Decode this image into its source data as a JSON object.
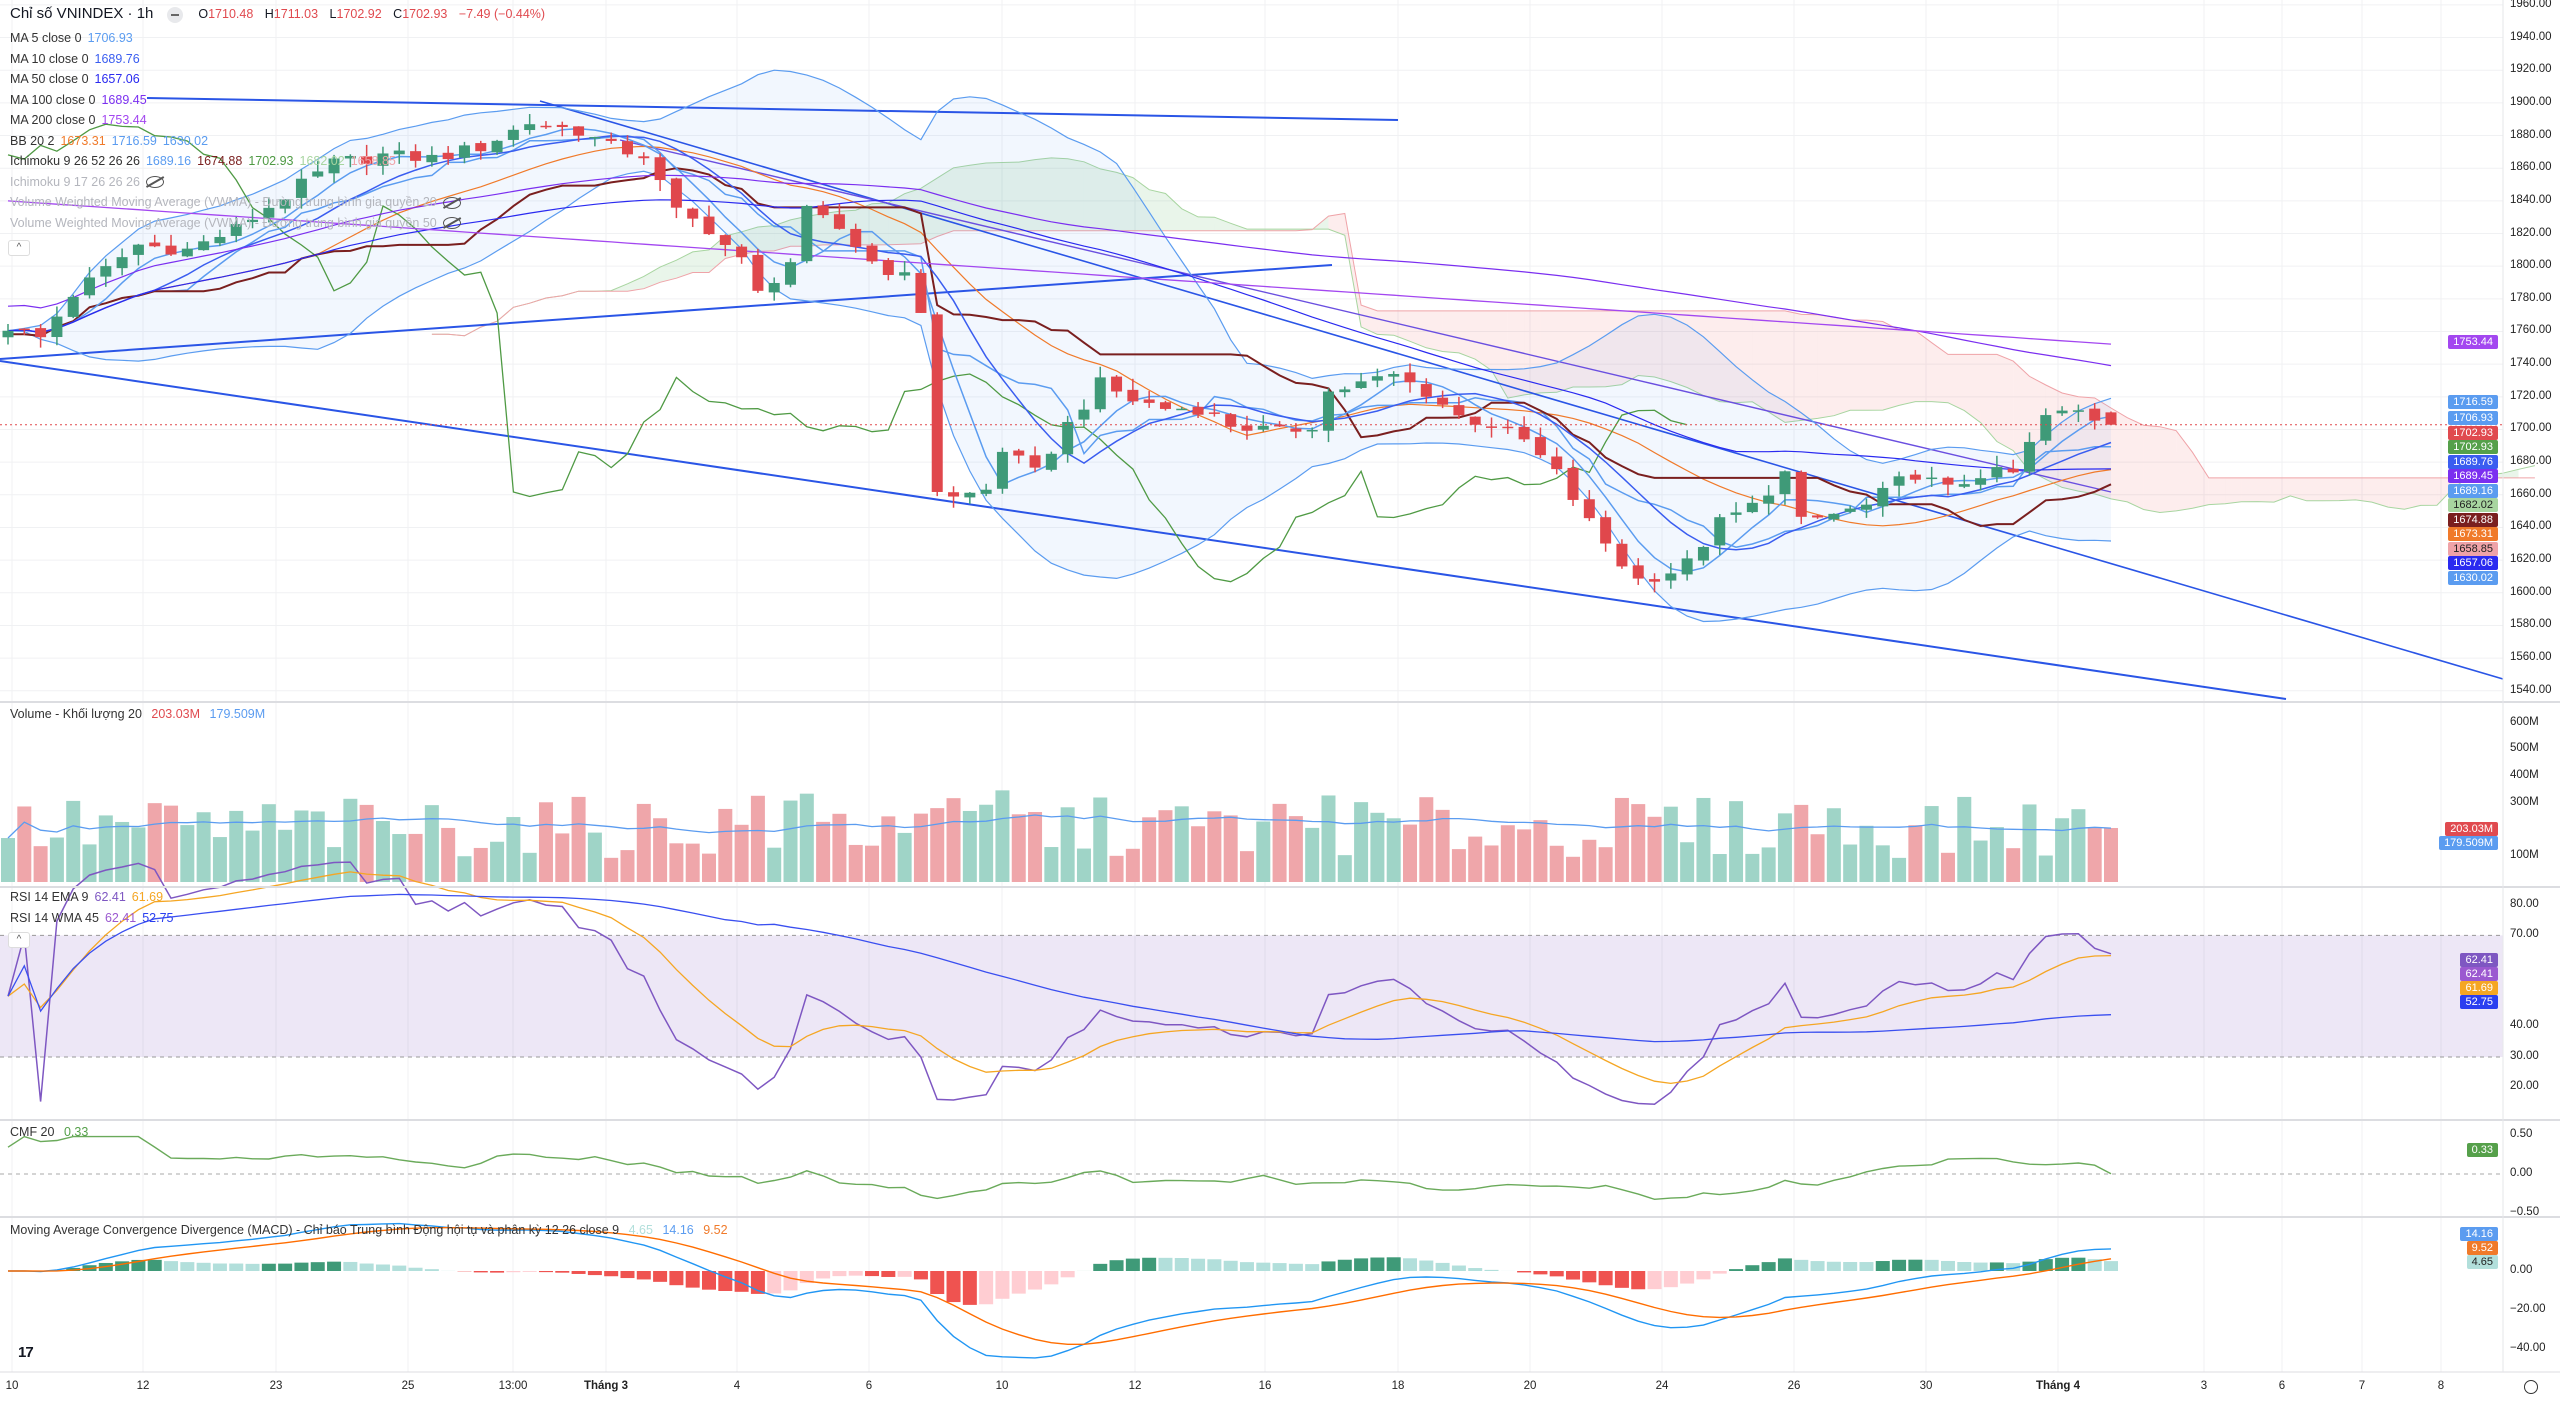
{
  "header": {
    "title": "Chỉ số VNINDEX · 1h",
    "ohlc": {
      "o_label": "O",
      "o": "1710.48",
      "h_label": "H",
      "h": "1711.03",
      "l_label": "L",
      "l": "1702.92",
      "c_label": "C",
      "c": "1702.93",
      "change": "−7.49 (−0.44%)"
    }
  },
  "indicators": [
    {
      "label": "MA 5 close 0",
      "values": [
        "1706.93"
      ],
      "colors": [
        "#5b9cf0"
      ]
    },
    {
      "label": "MA 10 close 0",
      "values": [
        "1689.76"
      ],
      "colors": [
        "#3a5df0"
      ]
    },
    {
      "label": "MA 50 close 0",
      "values": [
        "1657.06"
      ],
      "colors": [
        "#2a2af0"
      ]
    },
    {
      "label": "MA 100 close 0",
      "values": [
        "1689.45"
      ],
      "colors": [
        "#7b2ff0"
      ]
    },
    {
      "label": "MA 200 close 0",
      "values": [
        "1753.44"
      ],
      "colors": [
        "#a347f0"
      ]
    },
    {
      "label": "BB 20 2",
      "values": [
        "1673.31",
        "1716.59",
        "1630.02"
      ],
      "colors": [
        "#f07a2a",
        "#5b9cf0",
        "#5b9cf0"
      ]
    },
    {
      "label": "Ichimoku 9 26 52 26 26",
      "values": [
        "1689.16",
        "1674.88",
        "1702.93",
        "1682.02",
        "1658.85"
      ],
      "colors": [
        "#5b9cf0",
        "#7a1f1f",
        "#4f9a44",
        "#a8d5a0",
        "#efa3a8"
      ]
    }
  ],
  "hidden_indicators": [
    "Ichimoku 9 17 26 26 26",
    "Volume Weighted Moving Average (VWMA) - Đường trung bình gia quyền 20",
    "Volume Weighted Moving Average (VWMA) - Đường trung bình gia quyền 50"
  ],
  "volume_legend": {
    "label": "Volume - Khối lượng 20",
    "values": [
      "203.03M",
      "179.509M"
    ]
  },
  "rsi_legend": [
    {
      "label": "RSI 14 EMA 9",
      "values": [
        "62.41",
        "61.69"
      ]
    },
    {
      "label": "RSI 14 WMA 45",
      "values": [
        "62.41",
        "52.75"
      ]
    }
  ],
  "cmf_legend": {
    "label": "CMF 20",
    "value": "0.33"
  },
  "macd_legend": {
    "label": "Moving Average Convergence Divergence (MACD) - Chỉ báo Trung bình Động hội tụ và phân kỳ 12 26 close 9",
    "values": [
      "4.65",
      "14.16",
      "9.52"
    ]
  },
  "price_axis": [
    "1960.00",
    "1940.00",
    "1920.00",
    "1900.00",
    "1880.00",
    "1860.00",
    "1840.00",
    "1820.00",
    "1800.00",
    "1780.00",
    "1760.00",
    "1740.00",
    "1720.00",
    "1700.00",
    "1680.00",
    "1660.00",
    "1640.00",
    "1620.00",
    "1600.00",
    "1580.00",
    "1560.00",
    "1540.00"
  ],
  "price_badges": [
    {
      "text": "1753.44",
      "value": 1753.44,
      "color": "#a347f0"
    },
    {
      "text": "1716.59",
      "value": 1716.59,
      "color": "#5b9cf0"
    },
    {
      "text": "1706.93",
      "value": 1706.93,
      "color": "#5b9cf0"
    },
    {
      "text": "1702.93",
      "value": 1702.93,
      "color": "#e04a4f"
    },
    {
      "text": "1702.93",
      "value": 1702.93,
      "color": "#55a04a"
    },
    {
      "text": "1689.76",
      "value": 1689.76,
      "color": "#3a5df0"
    },
    {
      "text": "1689.45",
      "value": 1689.45,
      "color": "#7b2ff0"
    },
    {
      "text": "1689.16",
      "value": 1689.16,
      "color": "#5b9cf0"
    },
    {
      "text": "1682.02",
      "value": 1682.02,
      "color": "#a8d5a0"
    },
    {
      "text": "1674.88",
      "value": 1674.88,
      "color": "#7a1f1f"
    },
    {
      "text": "1673.31",
      "value": 1673.31,
      "color": "#f07a2a"
    },
    {
      "text": "1658.85",
      "value": 1658.85,
      "color": "#efa3a8"
    },
    {
      "text": "1657.06",
      "value": 1657.06,
      "color": "#2a2af0"
    },
    {
      "text": "1630.02",
      "value": 1630.02,
      "color": "#5b9cf0"
    }
  ],
  "volume_axis": [
    "600M",
    "500M",
    "400M",
    "300M",
    "100M"
  ],
  "volume_badges": [
    {
      "text": "203.03M",
      "color": "#e04a4f"
    },
    {
      "text": "179.509M",
      "color": "#5b9cf0"
    }
  ],
  "rsi_axis": [
    "80.00",
    "70.00",
    "40.00",
    "30.00",
    "20.00"
  ],
  "rsi_badges": [
    {
      "text": "62.41",
      "color": "#7e57c2"
    },
    {
      "text": "62.41",
      "color": "#9b59d0"
    },
    {
      "text": "61.69",
      "color": "#f5a623"
    },
    {
      "text": "52.75",
      "color": "#2a3ff0"
    }
  ],
  "cmf_axis": [
    "0.50",
    "0.00",
    "−0.50"
  ],
  "cmf_badge": {
    "text": "0.33",
    "color": "#55a04a"
  },
  "macd_axis": [
    "0.00",
    "−20.00",
    "−40.00"
  ],
  "macd_badges": [
    {
      "text": "14.16",
      "color": "#5b9cf0"
    },
    {
      "text": "9.52",
      "color": "#f07a2a"
    },
    {
      "text": "4.65",
      "color": "#b2dfdb"
    }
  ],
  "time_axis": [
    {
      "t": "10"
    },
    {
      "t": "12"
    },
    {
      "t": "23"
    },
    {
      "t": "25"
    },
    {
      "t": "13:00"
    },
    {
      "t": "Tháng 3",
      "bold": true
    },
    {
      "t": "4"
    },
    {
      "t": "6"
    },
    {
      "t": "10"
    },
    {
      "t": "12"
    },
    {
      "t": "16"
    },
    {
      "t": "18"
    },
    {
      "t": "20"
    },
    {
      "t": "24"
    },
    {
      "t": "26"
    },
    {
      "t": "30"
    },
    {
      "t": "Tháng 4",
      "bold": true
    },
    {
      "t": "3"
    },
    {
      "t": "6"
    },
    {
      "t": "7"
    },
    {
      "t": "8"
    }
  ],
  "logo": "TV",
  "chart_data": {
    "type": "candlestick",
    "bars": 130,
    "close_keyframes": [
      [
        0,
        1763
      ],
      [
        2,
        1756
      ],
      [
        4,
        1783
      ],
      [
        6,
        1798
      ],
      [
        8,
        1813
      ],
      [
        11,
        1810
      ],
      [
        14,
        1823
      ],
      [
        17,
        1843
      ],
      [
        20,
        1863
      ],
      [
        23,
        1868
      ],
      [
        26,
        1866
      ],
      [
        29,
        1873
      ],
      [
        32,
        1888
      ],
      [
        35,
        1883
      ],
      [
        37,
        1873
      ],
      [
        39,
        1868
      ],
      [
        41,
        1833
      ],
      [
        43,
        1823
      ],
      [
        45,
        1803
      ],
      [
        46,
        1783
      ],
      [
        48,
        1803
      ],
      [
        49,
        1833
      ],
      [
        51,
        1823
      ],
      [
        53,
        1803
      ],
      [
        55,
        1793
      ],
      [
        56,
        1773
      ],
      [
        57,
        1663
      ],
      [
        58,
        1658
      ],
      [
        60,
        1663
      ],
      [
        61,
        1688
      ],
      [
        63,
        1673
      ],
      [
        65,
        1703
      ],
      [
        67,
        1728
      ],
      [
        69,
        1718
      ],
      [
        71,
        1713
      ],
      [
        73,
        1713
      ],
      [
        75,
        1703
      ],
      [
        78,
        1698
      ],
      [
        80,
        1703
      ],
      [
        81,
        1723
      ],
      [
        83,
        1728
      ],
      [
        85,
        1733
      ],
      [
        87,
        1723
      ],
      [
        89,
        1708
      ],
      [
        91,
        1703
      ],
      [
        93,
        1693
      ],
      [
        95,
        1673
      ],
      [
        97,
        1643
      ],
      [
        99,
        1618
      ],
      [
        100,
        1608
      ],
      [
        102,
        1613
      ],
      [
        103,
        1618
      ],
      [
        105,
        1643
      ],
      [
        107,
        1653
      ],
      [
        109,
        1673
      ],
      [
        110,
        1643
      ],
      [
        112,
        1648
      ],
      [
        114,
        1653
      ],
      [
        116,
        1668
      ],
      [
        117,
        1673
      ],
      [
        119,
        1663
      ],
      [
        121,
        1673
      ],
      [
        123,
        1673
      ],
      [
        125,
        1708
      ],
      [
        127,
        1711
      ],
      [
        129,
        1702.93
      ]
    ],
    "last_bar": {
      "open": 1710.48,
      "high": 1711.03,
      "low": 1702.92,
      "close": 1702.93
    },
    "ylim": [
      1540,
      1960
    ],
    "colors": {
      "up": "#3f9a78",
      "down": "#e0474c",
      "vol_up": "#9fd4c7",
      "vol_down": "#efa6aa"
    }
  }
}
